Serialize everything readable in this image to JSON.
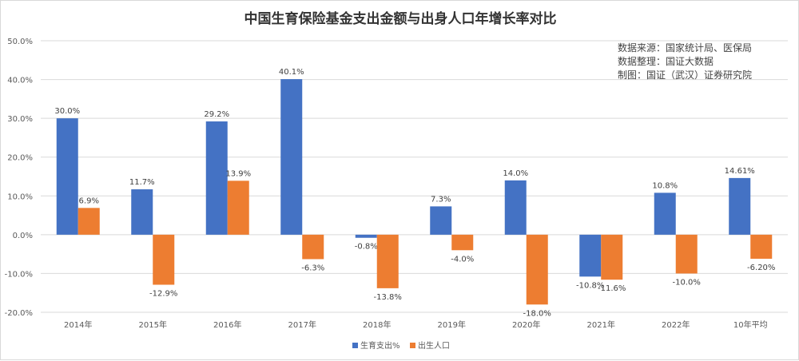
{
  "chart_data": {
    "type": "bar",
    "title": "中国生育保险基金支出金额与出身人口年增长率对比",
    "categories": [
      "2014年",
      "2015年",
      "2016年",
      "2017年",
      "2018年",
      "2019年",
      "2020年",
      "2021年",
      "2022年",
      "10年平均"
    ],
    "series": [
      {
        "name": "生育支出%",
        "color": "#4472c4",
        "values": [
          30.0,
          11.7,
          29.2,
          40.1,
          -0.8,
          7.3,
          14.0,
          -10.8,
          10.8,
          14.61
        ],
        "labels": [
          "30.0%",
          "11.7%",
          "29.2%",
          "40.1%",
          "-0.8%",
          "7.3%",
          "14.0%",
          "-10.8%",
          "10.8%",
          "14.61%"
        ]
      },
      {
        "name": "出生人口",
        "color": "#ed7d31",
        "values": [
          6.9,
          -12.9,
          13.9,
          -6.3,
          -13.8,
          -4.0,
          -18.0,
          -11.6,
          -10.0,
          -6.2
        ],
        "labels": [
          "6.9%",
          "-12.9%",
          "13.9%",
          "-6.3%",
          "-13.8%",
          "-4.0%",
          "-18.0%",
          "-11.6%",
          "-10.0%",
          "-6.20%"
        ]
      }
    ],
    "ylim": [
      -20,
      50
    ],
    "yticks": [
      50,
      40,
      30,
      20,
      10,
      0,
      -10,
      -20
    ],
    "ytick_labels": [
      "50.0%",
      "40.0%",
      "30.0%",
      "20.0%",
      "10.0%",
      "0.0%",
      "-10.0%",
      "-20.0%"
    ],
    "grid": true,
    "legend": "bottom-center",
    "xlabel": "",
    "ylabel": ""
  },
  "notes": [
    "数据来源：国家统计局、医保局",
    "数据整理：国证大数据",
    "制图：国证（武汉）证券研究院"
  ]
}
